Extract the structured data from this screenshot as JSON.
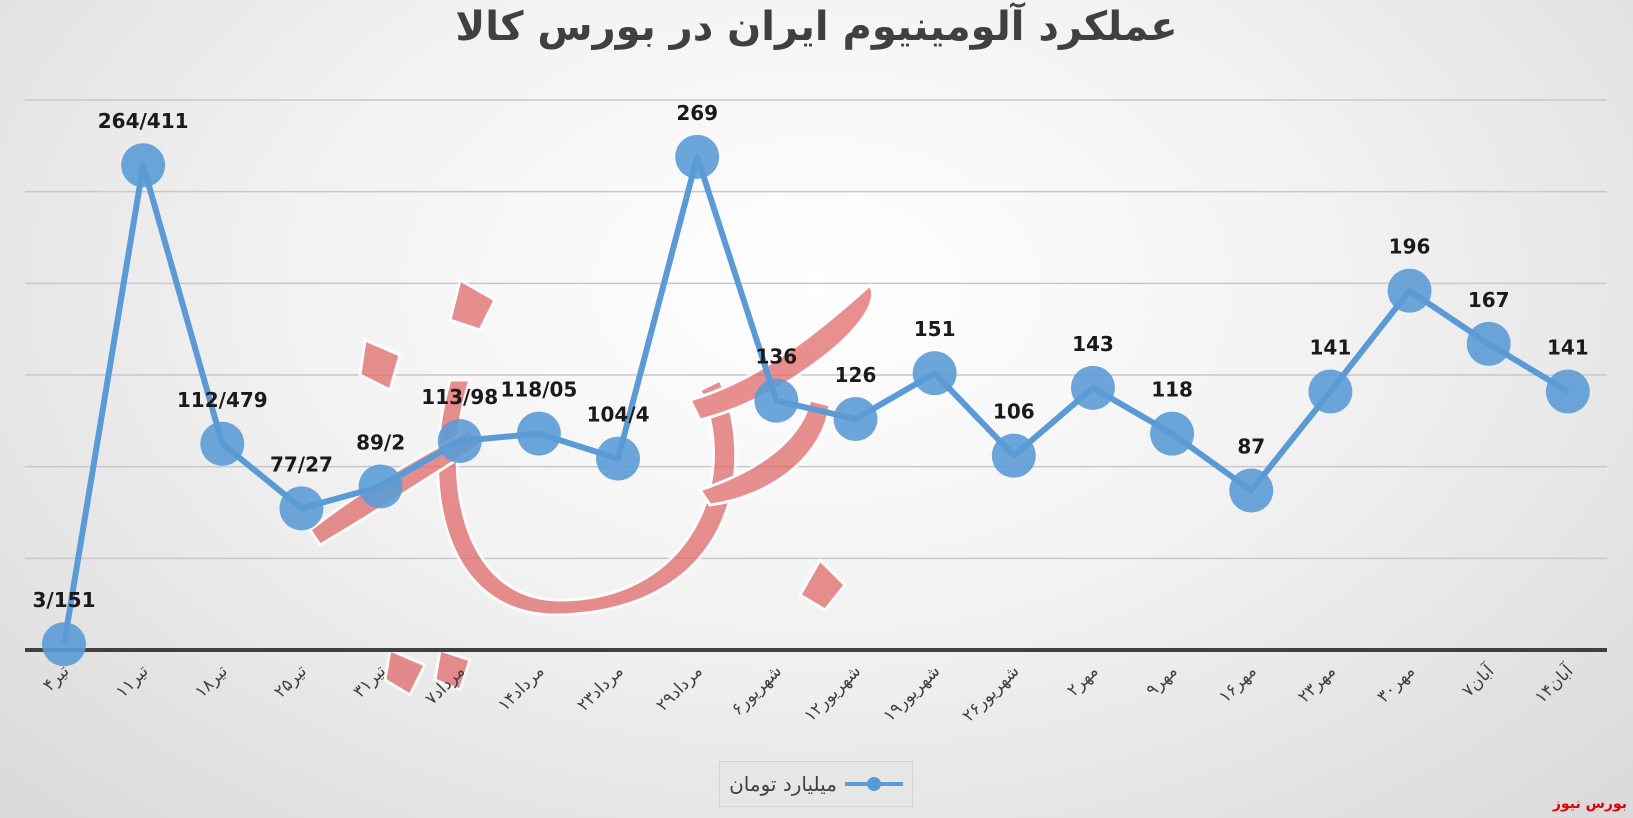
{
  "colors": {
    "series": "#5b9bd5",
    "grid": "#c8c8c8",
    "axis": "#404040",
    "brand": "#e00000",
    "watermark": "#e06666"
  },
  "brand_label": "بورس نیوز",
  "chart_data": {
    "type": "line",
    "title": "عملکرد آلومینیوم ایران در بورس کالا",
    "xlabel": "",
    "ylabel": "",
    "ylim": [
      0,
      300
    ],
    "grid": true,
    "legend": "bottom-center",
    "categories": [
      "۴تیر",
      "۱۱تیر",
      "۱۸تیر",
      "۲۵تیر",
      "۳۱تیر",
      "۷مرداد",
      "۱۴مرداد",
      "۲۳مرداد",
      "۲۹مرداد",
      "۶شهریور",
      "۱۲شهریور",
      "۱۹شهریور",
      "۲۶شهریور",
      "۲مهر",
      "۹مهر",
      "۱۶مهر",
      "۲۳مهر",
      "۳۰مهر",
      "۷آبان",
      "۱۴آبان"
    ],
    "series": [
      {
        "name": "میلیارد تومان",
        "values": [
          3.151,
          264.411,
          112.479,
          77.27,
          89.2,
          113.98,
          118.05,
          104.4,
          269,
          136,
          126,
          151,
          106,
          143,
          118,
          87,
          141,
          196,
          167,
          141
        ],
        "labels": [
          "3/151",
          "264/411",
          "112/479",
          "77/27",
          "89/2",
          "113/98",
          "118/05",
          "104/4",
          "269",
          "136",
          "126",
          "151",
          "106",
          "143",
          "118",
          "87",
          "141",
          "196",
          "167",
          "141"
        ]
      }
    ]
  }
}
